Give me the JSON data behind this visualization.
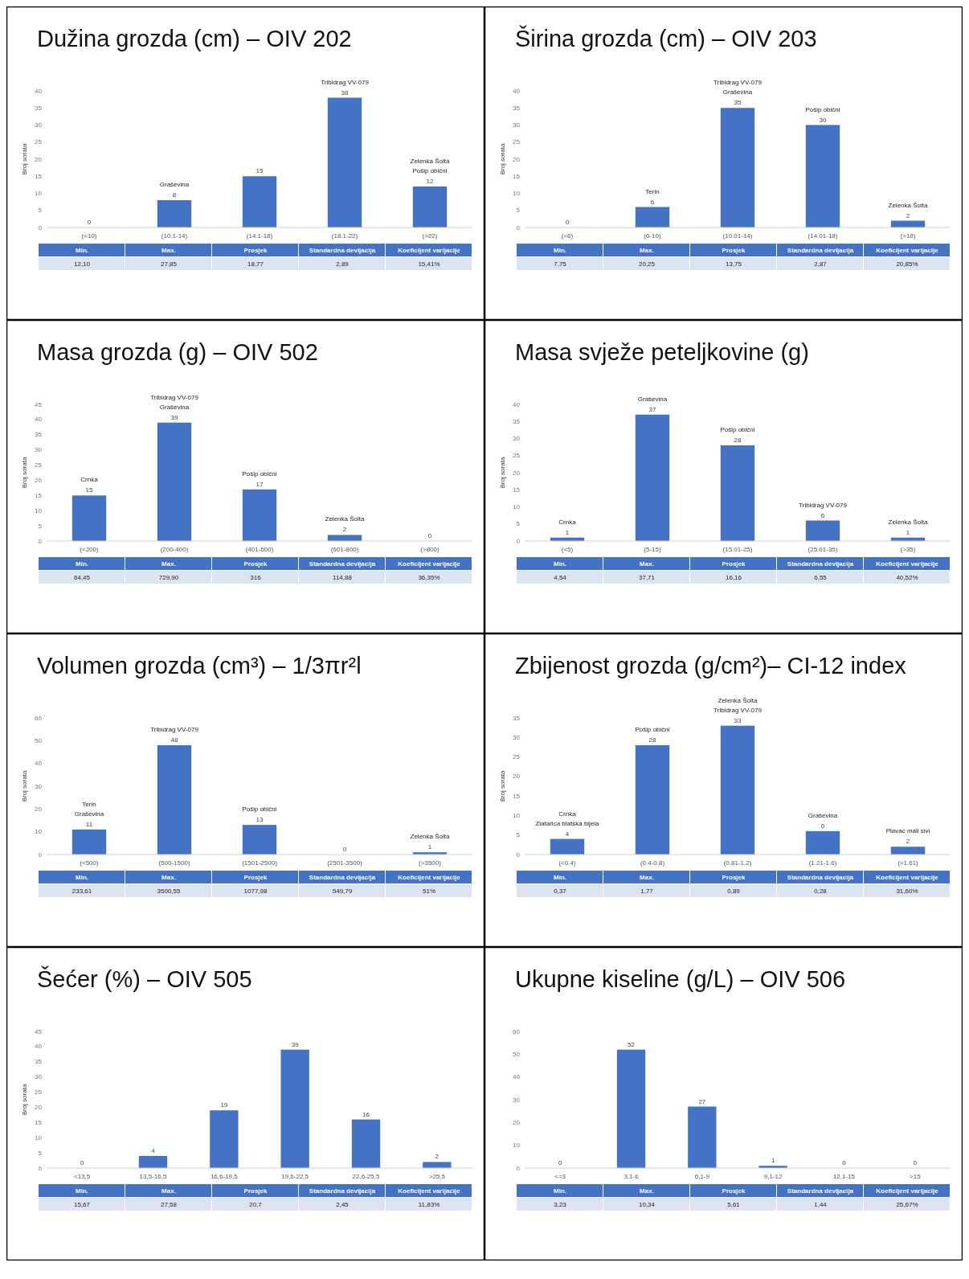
{
  "chart_data": [
    {
      "type": "bar",
      "title": "Dužina grozda (cm) – OIV 202",
      "ylabel": "Broj sorata",
      "categories": [
        "(<10)",
        "(10.1-14)",
        "(14.1-18)",
        "(18.1-22)",
        "(>22)"
      ],
      "values": [
        0,
        8,
        15,
        38,
        12
      ],
      "color": "#4472c4",
      "ylim": [
        0,
        40
      ],
      "yticks": [
        0,
        5,
        10,
        15,
        20,
        25,
        30,
        35,
        40
      ],
      "data_labels": true,
      "annotations": [
        {
          "text": "Graševina",
          "x": "(10.1-14)",
          "y": 8
        },
        {
          "text": "Tribidrag VV-079",
          "x": "(18.1-22)",
          "y": 38
        },
        {
          "text": "Zelenka Šolta\nPošip obični",
          "x": "(>22)",
          "y": 12
        },
        "Min.",
        "Max.",
        "Prosjek",
        "Standardna devijacija",
        "Koeficijent varijacije",
        "12,10",
        "27,85",
        "18,77",
        "2,89",
        "15,41%"
      ]
    },
    {
      "type": "bar",
      "title": "Širina grozda (cm) – OIV 203",
      "ylabel": "Broj sorata",
      "categories": [
        "(<6)",
        "(6-10)",
        "(10.01-14)",
        "(14.01-18)",
        "(>18)"
      ],
      "values": [
        0,
        6,
        35,
        30,
        2
      ],
      "color": "#4472c4",
      "ylim": [
        0,
        40
      ],
      "yticks": [
        0,
        5,
        10,
        15,
        20,
        25,
        30,
        35,
        40
      ],
      "data_labels": true,
      "annotations": [
        {
          "text": "Terin",
          "x": "(6-10)",
          "y": 6
        },
        {
          "text": "Tribidrag VV-079\nGraševina",
          "x": "(10.01-14)",
          "y": 35
        },
        {
          "text": "Pošip obični",
          "x": "(14.01-18)",
          "y": 30
        },
        {
          "text": "Zelenka Šolta",
          "x": "(>18)",
          "y": 2
        },
        "Min.",
        "Max.",
        "Prosjek",
        "Standardna devijacija",
        "Koeficijent varijacije",
        "7,75",
        "20,25",
        "13,75",
        "2,87",
        "20,85%"
      ]
    },
    {
      "type": "bar",
      "title": "Masa grozda (g) – OIV 502",
      "ylabel": "Broj sorata",
      "categories": [
        "(<200)",
        "(200-400)",
        "(401-600)",
        "(601-800)",
        "(>800)"
      ],
      "values": [
        15,
        39,
        17,
        2,
        0
      ],
      "color": "#4472c4",
      "ylim": [
        0,
        45
      ],
      "yticks": [
        0,
        5,
        10,
        15,
        20,
        25,
        30,
        35,
        40,
        45
      ],
      "data_labels": true,
      "annotations": [
        {
          "text": "Crnka",
          "x": "(<200)",
          "y": 15
        },
        {
          "text": "Tribidrag VV-079\nGraševina",
          "x": "(200-400)",
          "y": 39
        },
        {
          "text": "Pošip obični",
          "x": "(401-600)",
          "y": 17
        },
        {
          "text": "Zelenka Šolta",
          "x": "(601-800)",
          "y": 2
        },
        "Min.",
        "Max.",
        "Prosjek",
        "Standardna devijacija",
        "Koeficijent varijacije",
        "64,45",
        "729,90",
        "316",
        "114,88",
        "36,35%"
      ]
    },
    {
      "type": "bar",
      "title": "Masa svježe peteljkovine (g)",
      "ylabel": "Broj sorata",
      "categories": [
        "(<5)",
        "(5-15)",
        "(15.01-25)",
        "(25.01-35)",
        "(>35)"
      ],
      "values": [
        1,
        37,
        28,
        6,
        1
      ],
      "color": "#4472c4",
      "ylim": [
        0,
        40
      ],
      "yticks": [
        0,
        5,
        10,
        15,
        20,
        25,
        30,
        35,
        40
      ],
      "data_labels": true,
      "annotations": [
        {
          "text": "Crnka",
          "x": "(<5)",
          "y": 1
        },
        {
          "text": "Graševina",
          "x": "(5-15)",
          "y": 37
        },
        {
          "text": "Pošip obični",
          "x": "(15.01-25)",
          "y": 28
        },
        {
          "text": "Tribidrag VV-079",
          "x": "(25.01-35)",
          "y": 6
        },
        {
          "text": "Zelenka Šolta",
          "x": "(>35)",
          "y": 1
        },
        "Min.",
        "Max.",
        "Prosjek",
        "Standardna devijacija",
        "Koeficijent varijacije",
        "4,54",
        "37,71",
        "16,16",
        "6,55",
        "40,52%"
      ]
    },
    {
      "type": "bar",
      "title": "Volumen grozda (cm³) – 1/3πr²l",
      "ylabel": "Broj sorata",
      "categories": [
        "(<500)",
        "(500-1500)",
        "(1501-2500)",
        "(2501-3500)",
        "(>3500)"
      ],
      "values": [
        11,
        48,
        13,
        0,
        1
      ],
      "color": "#4472c4",
      "ylim": [
        0,
        60
      ],
      "yticks": [
        0,
        10,
        20,
        30,
        40,
        50,
        60
      ],
      "data_labels": true,
      "annotations": [
        {
          "text": "Terin\nGraševina",
          "x": "(<500)",
          "y": 11
        },
        {
          "text": "Tribidrag VV-079",
          "x": "(500-1500)",
          "y": 48
        },
        {
          "text": "Pošip obični",
          "x": "(1501-2500)",
          "y": 13
        },
        {
          "text": "Zelenka Šolta",
          "x": "(>3500)",
          "y": 1
        },
        "Min.",
        "Max.",
        "Prosjek",
        "Standardna devijacija",
        "Koeficijent varijacije",
        "233,61",
        "3500,55",
        "1077,98",
        "549,79",
        "51%"
      ]
    },
    {
      "type": "bar",
      "title": "Zbijenost grozda (g/cm²)– CI-12 index",
      "ylabel": "Broj sorata",
      "categories": [
        "(<0.4)",
        "(0.4-0.8)",
        "(0.81-1.2)",
        "(1.21-1.6)",
        "(>1.61)"
      ],
      "values": [
        4,
        28,
        33,
        6,
        2
      ],
      "color": "#4472c4",
      "ylim": [
        0,
        35
      ],
      "yticks": [
        0,
        5,
        10,
        15,
        20,
        25,
        30,
        35
      ],
      "data_labels": true,
      "annotations": [
        {
          "text": "Crnka\nZlatarica blatska bijela",
          "x": "(<0.4)",
          "y": 4
        },
        {
          "text": "Pošip obični",
          "x": "(0.4-0.8)",
          "y": 28
        },
        {
          "text": "Zelenka Šolta\nTribidrag VV-079",
          "x": "(0.81-1.2)",
          "y": 33
        },
        {
          "text": "Graševina",
          "x": "(1.21-1.6)",
          "y": 6
        },
        {
          "text": "Plavac mali sivi",
          "x": "(>1.61)",
          "y": 2
        },
        "Min.",
        "Max.",
        "Prosjek",
        "Standardna devijacija",
        "Koeficijent varijacije",
        "0,37",
        "1,77",
        "0,89",
        "0,28",
        "31,60%"
      ]
    },
    {
      "type": "bar",
      "title": "Šećer (%) – OIV 505",
      "ylabel": "Broj sorata",
      "categories": [
        "<13,5",
        "13,5-16,5",
        "16,6-19,5",
        "19,6-22,5",
        "22,6-25,5",
        ">25,5"
      ],
      "values": [
        0,
        4,
        19,
        39,
        16,
        2
      ],
      "color": "#4472c4",
      "ylim": [
        0,
        45
      ],
      "yticks": [
        0,
        5,
        10,
        15,
        20,
        25,
        30,
        35,
        40,
        45
      ],
      "data_labels": true,
      "annotations": [
        "Min.",
        "Max.",
        "Prosjek",
        "Standardna devijacija",
        "Koeficijent varijacije",
        "15,67",
        "27,58",
        "20,7",
        "2,45",
        "11,83%"
      ]
    },
    {
      "type": "bar",
      "title": "Ukupne kiseline (g/L) – OIV 506",
      "categories": [
        "<=3",
        "3,1-6",
        "6,1-9",
        "9,1-12",
        "12,1-15",
        ">15"
      ],
      "values": [
        0,
        52,
        27,
        1,
        0,
        0
      ],
      "color": "#4472c4",
      "ylim": [
        0,
        60
      ],
      "yticks": [
        0,
        10,
        20,
        30,
        40,
        50,
        60
      ],
      "data_labels": true,
      "annotations": [
        "Min.",
        "Max.",
        "Prosjek",
        "Standardna devijacija",
        "Koeficijent varijacije",
        "3,23",
        "10,34",
        "5,61",
        "1,44",
        "25,67%"
      ]
    }
  ]
}
